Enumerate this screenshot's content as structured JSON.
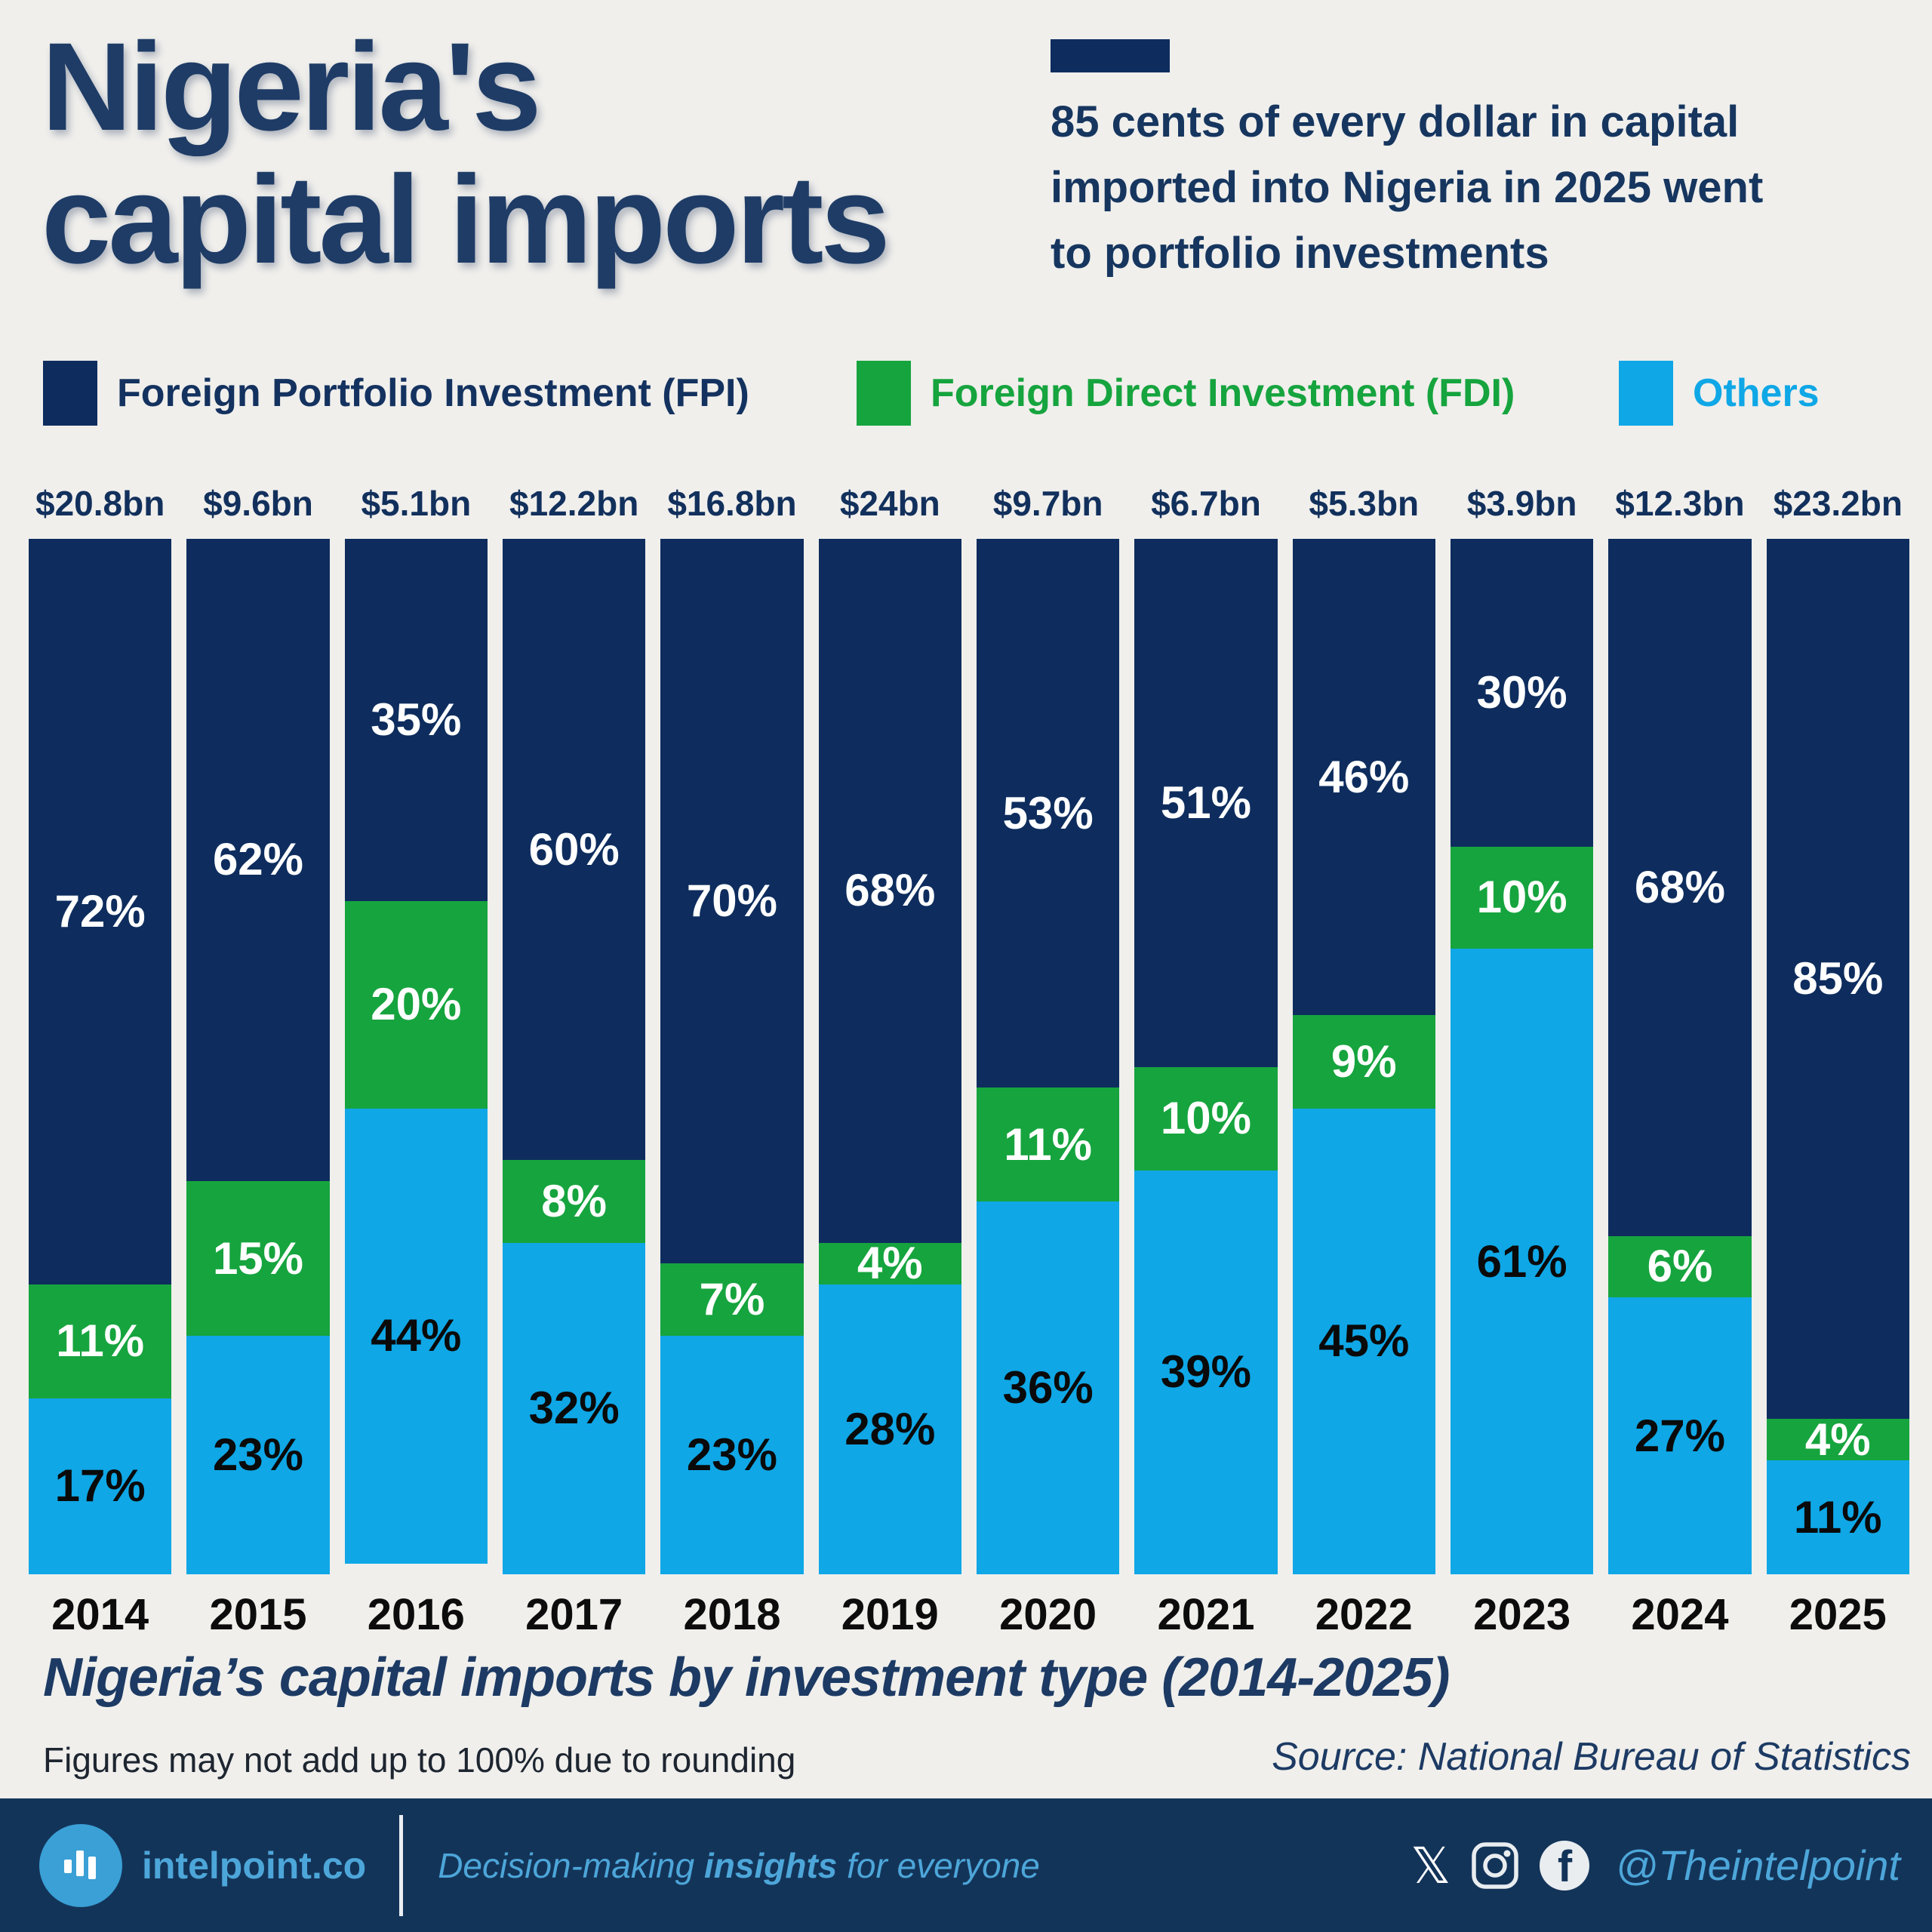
{
  "title": {
    "lines": [
      "Nigeria's",
      "capital imports"
    ]
  },
  "callout": {
    "lines": [
      "85 cents of every dollar in capital",
      "imported into Nigeria in 2025 went",
      "to portfolio investments"
    ]
  },
  "chart_data": {
    "type": "bar",
    "stacked": true,
    "value_unit": "%",
    "title": "Nigeria’s capital imports by investment type (2014-2025)",
    "legend_position": "top",
    "ylim": [
      0,
      100
    ],
    "categories": [
      "2014",
      "2015",
      "2016",
      "2017",
      "2018",
      "2019",
      "2020",
      "2021",
      "2022",
      "2023",
      "2024",
      "2025"
    ],
    "totals": [
      "$20.8bn",
      "$9.6bn",
      "$5.1bn",
      "$12.2bn",
      "$16.8bn",
      "$24bn",
      "$9.7bn",
      "$6.7bn",
      "$5.3bn",
      "$3.9bn",
      "$12.3bn",
      "$23.2bn"
    ],
    "series": [
      {
        "key": "fpi",
        "name": "Foreign Portfolio Investment (FPI)",
        "color": "#0e2d5e",
        "value_label_color": "#ffffff",
        "legend_text_color": "#14325f",
        "values": [
          72,
          62,
          35,
          60,
          70,
          68,
          53,
          51,
          46,
          30,
          68,
          85
        ]
      },
      {
        "key": "fdi",
        "name": "Foreign Direct Investment (FDI)",
        "color": "#16a43e",
        "value_label_color": "#ffffff",
        "legend_text_color": "#16a43e",
        "values": [
          11,
          15,
          20,
          8,
          7,
          4,
          11,
          10,
          9,
          10,
          6,
          4
        ]
      },
      {
        "key": "others",
        "name": "Others",
        "color": "#0fa7e6",
        "value_label_color": "#0a0a0a",
        "legend_text_color": "#0fa7e6",
        "values": [
          17,
          23,
          44,
          32,
          23,
          28,
          36,
          39,
          45,
          61,
          27,
          11
        ]
      }
    ]
  },
  "caption": "Nigeria’s capital imports by investment type (2014-2025)",
  "footnote": "Figures may not add up to 100% due to rounding",
  "source": "Source: National Bureau of Statistics",
  "footer": {
    "brand": "intelpoint.co",
    "tagline_pre": "Decision-making ",
    "tagline_bold": "insights",
    "tagline_post": " for everyone",
    "handle": "@Theintelpoint",
    "x_glyph": "𝕏",
    "fb_glyph": "f",
    "accent_color": "#4da6d9",
    "background": "#133459"
  }
}
